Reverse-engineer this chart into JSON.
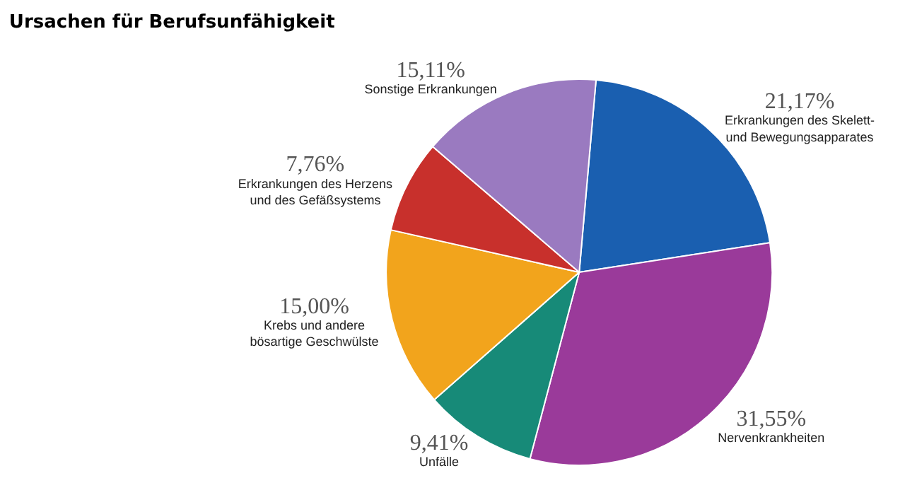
{
  "chart_data": {
    "type": "pie",
    "title": "Ursachen für Berufsunfähigkeit",
    "categories": [
      "Erkrankungen des Skelett-\nund Bewegungsapparates",
      "Nervenkrankheiten",
      "Unfälle",
      "Krebs und andere\nbösartige Geschwülste",
      "Erkrankungen des Herzens\nund des Gefäßsystems",
      "Sonstige Erkrankungen"
    ],
    "values": [
      21.17,
      31.55,
      9.41,
      15.0,
      7.76,
      15.11
    ],
    "value_labels": [
      "21,17%",
      "31,55%",
      "9,41%",
      "15,00%",
      "7,76%",
      "15,11%"
    ],
    "colors": [
      "#1a5fb0",
      "#9a3a9a",
      "#178a78",
      "#f2a41c",
      "#c8302c",
      "#9a7ac0"
    ],
    "legend": false
  }
}
